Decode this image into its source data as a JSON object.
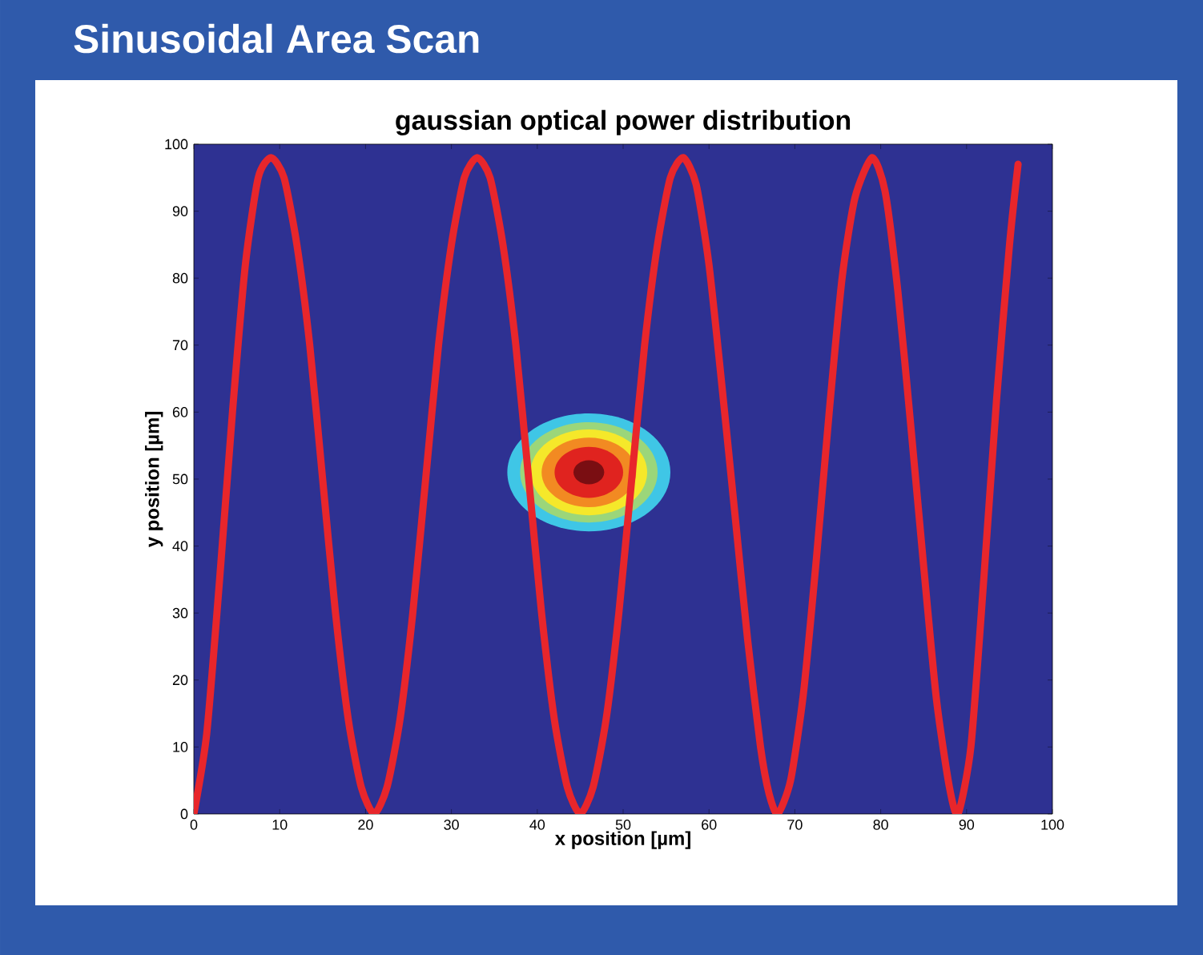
{
  "chart_data": {
    "type": "line",
    "title": "Sinusoidal Area Scan",
    "subtitle": "gaussian optical power distribution",
    "xlabel": "x position [µm]",
    "ylabel": "y position  [µm]",
    "xlim": [
      0,
      100
    ],
    "ylim": [
      0,
      100
    ],
    "xticks": [
      0,
      10,
      20,
      30,
      40,
      50,
      60,
      70,
      80,
      90,
      100
    ],
    "yticks": [
      0,
      10,
      20,
      30,
      40,
      50,
      60,
      70,
      80,
      90,
      100
    ],
    "series": [
      {
        "color": "#e8262b",
        "x": [
          0,
          1.5,
          3,
          4.5,
          6,
          7.5,
          9,
          10.5,
          12,
          13.5,
          15,
          16.5,
          18,
          19.5,
          21,
          22.5,
          24,
          25.5,
          27,
          28.5,
          30,
          31.5,
          33,
          34.5,
          36,
          37.5,
          39,
          40.5,
          42,
          43.5,
          45,
          46.5,
          48,
          49.5,
          51,
          52.5,
          54,
          55.5,
          57,
          58.5,
          60,
          61.5,
          63,
          64.5,
          66,
          67,
          68,
          69.5,
          71,
          72.5,
          74,
          75.5,
          77,
          79,
          80.5,
          82,
          83.5,
          85,
          86.5,
          88,
          89,
          90.5,
          92,
          93.5,
          95,
          96
        ],
        "values": [
          0,
          12,
          35,
          60,
          82,
          95,
          98,
          95,
          85,
          70,
          50,
          30,
          14,
          4,
          0,
          4,
          14,
          30,
          50,
          70,
          85,
          95,
          98,
          95,
          85,
          70,
          50,
          30,
          14,
          4,
          0,
          4,
          14,
          30,
          50,
          70,
          85,
          95,
          98,
          94,
          82,
          64,
          45,
          26,
          10,
          3,
          0,
          5,
          18,
          38,
          60,
          80,
          92,
          98,
          93,
          78,
          58,
          37,
          17,
          4,
          0,
          10,
          35,
          62,
          85,
          97
        ]
      }
    ]
  }
}
